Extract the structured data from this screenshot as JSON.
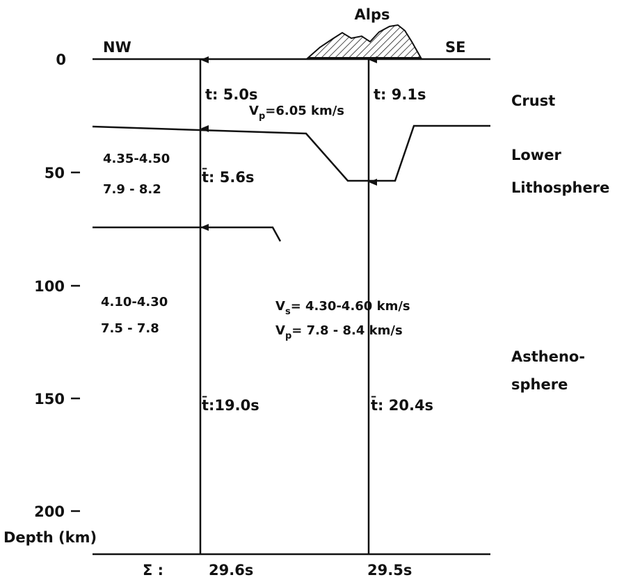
{
  "feature": "Alps",
  "directions": {
    "left": "NW",
    "right": "SE"
  },
  "axis": {
    "title": "Depth (km)",
    "ticks": [
      "0",
      "50",
      "100",
      "150",
      "200"
    ]
  },
  "layers": [
    "Crust",
    "Lower",
    "Lithosphere",
    "Astheno-",
    "sphere"
  ],
  "times": {
    "nw": [
      "t: 5.0s",
      "t̄: 5.6s",
      "t̄:19.0s"
    ],
    "se": [
      "t: 9.1s",
      "t̄: 20.4s"
    ]
  },
  "velocities": [
    "4.35-4.50",
    "7.9 - 8.2",
    "4.10-4.30",
    "7.5 - 7.8"
  ],
  "labeled_velocities": [
    {
      "symbol": "V",
      "sub": "p",
      "text": "=6.05 km/s"
    },
    {
      "symbol": "V",
      "sub": "s",
      "text": "= 4.30-4.60  km/s"
    },
    {
      "symbol": "V",
      "sub": "p",
      "text": "= 7.8 - 8.4  km/s"
    }
  ],
  "sum": {
    "symbol": "Σ :",
    "values": [
      "29.6s",
      "29.5s"
    ]
  }
}
